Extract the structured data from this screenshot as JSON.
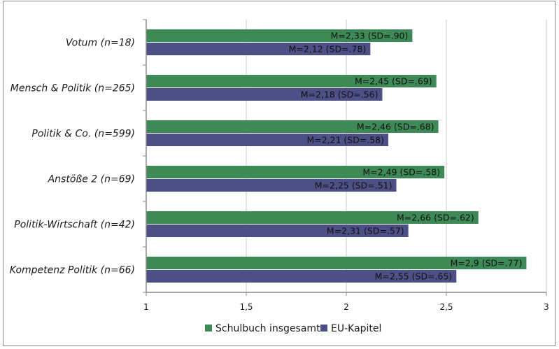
{
  "chart_data": {
    "type": "bar",
    "orientation": "horizontal",
    "categories": [
      "Votum (n=18)",
      "Mensch & Politik (n=265)",
      "Politik & Co. (n=599)",
      "Anstöße 2 (n=69)",
      "Politik-Wirtschaft (n=42)",
      "Kompetenz Politik (n=66)"
    ],
    "series": [
      {
        "name": "Schulbuch insgesamt",
        "color": "#3d8a56",
        "values": [
          2.33,
          2.45,
          2.46,
          2.49,
          2.66,
          2.9
        ],
        "labels": [
          "M=2,33 (SD=.90)",
          "M=2,45 (SD=.69)",
          "M=2,46 (SD=.68)",
          "M=2,49 (SD=.58)",
          "M=2,66 (SD=.62)",
          "M=2,9 (SD=.77)"
        ]
      },
      {
        "name": "EU-Kapitel",
        "color": "#4d4f87",
        "values": [
          2.12,
          2.18,
          2.21,
          2.25,
          2.31,
          2.55
        ],
        "labels": [
          "M=2,12 (SD=.78)",
          "M=2,18 (SD=.56)",
          "M=2,21 (SD=.58)",
          "M=2,25 (SD=.51)",
          "M=2,31 (SD=.57)",
          "M=2,55 (SD=.65)"
        ]
      }
    ],
    "xlim": [
      1,
      3
    ],
    "xticks": [
      1,
      1.5,
      2,
      2.5,
      3
    ],
    "xtick_labels": [
      "1",
      "1,5",
      "2",
      "2,5",
      "3"
    ],
    "grid": true,
    "legend": "bottom"
  }
}
